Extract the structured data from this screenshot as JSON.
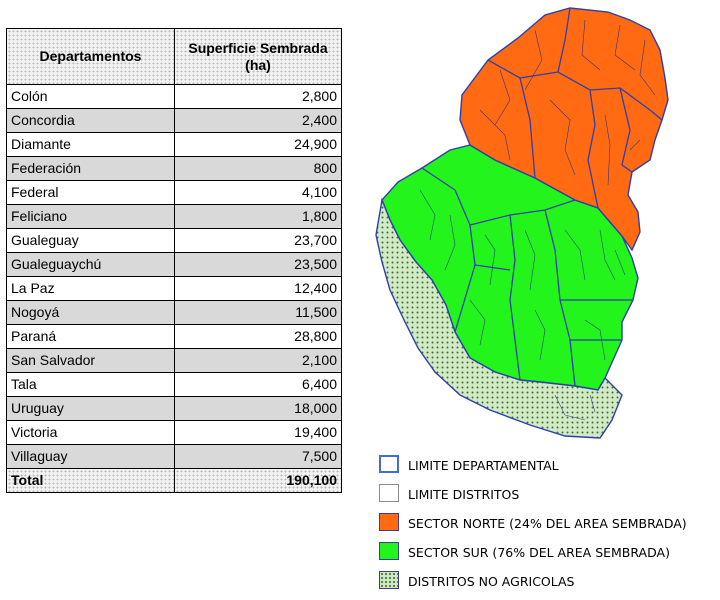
{
  "table": {
    "header_departamentos": "Departamentos",
    "header_superficie_line1": "Superficie Sembrada",
    "header_superficie_line2": "(ha)",
    "rows": [
      {
        "dept": "Colón",
        "value": "2,800"
      },
      {
        "dept": "Concordia",
        "value": "2,400"
      },
      {
        "dept": "Diamante",
        "value": "24,900"
      },
      {
        "dept": "Federación",
        "value": "800"
      },
      {
        "dept": "Federal",
        "value": "4,100"
      },
      {
        "dept": "Feliciano",
        "value": "1,800"
      },
      {
        "dept": "Gualeguay",
        "value": "23,700"
      },
      {
        "dept": "Gualeguaychú",
        "value": "23,500"
      },
      {
        "dept": "La Paz",
        "value": "12,400"
      },
      {
        "dept": "Nogoyá",
        "value": "11,500"
      },
      {
        "dept": "Paraná",
        "value": "28,800"
      },
      {
        "dept": "San Salvador",
        "value": "2,100"
      },
      {
        "dept": "Tala",
        "value": "6,400"
      },
      {
        "dept": "Uruguay",
        "value": "18,000"
      },
      {
        "dept": "Victoria",
        "value": "19,400"
      },
      {
        "dept": "Villaguay",
        "value": "7,500"
      }
    ],
    "total_label": "Total",
    "total_value": "190,100"
  },
  "legend": {
    "items": [
      {
        "key": "dept",
        "label": "LIMITE DEPARTAMENTAL"
      },
      {
        "key": "dist",
        "label": "LIMITE DISTRITOS"
      },
      {
        "key": "north",
        "label": "SECTOR NORTE (24% DEL AREA SEMBRADA)"
      },
      {
        "key": "south",
        "label": "SECTOR SUR (76% DEL AREA SEMBRADA)"
      },
      {
        "key": "nonag",
        "label": "DISTRITOS NO AGRICOLAS"
      }
    ]
  },
  "colors": {
    "north": "#ff6a13",
    "south": "#23f51c",
    "non_agricultural": "#cfe8c2",
    "department_border": "#3f6fd6",
    "row_shade": "#d9d9d9"
  }
}
